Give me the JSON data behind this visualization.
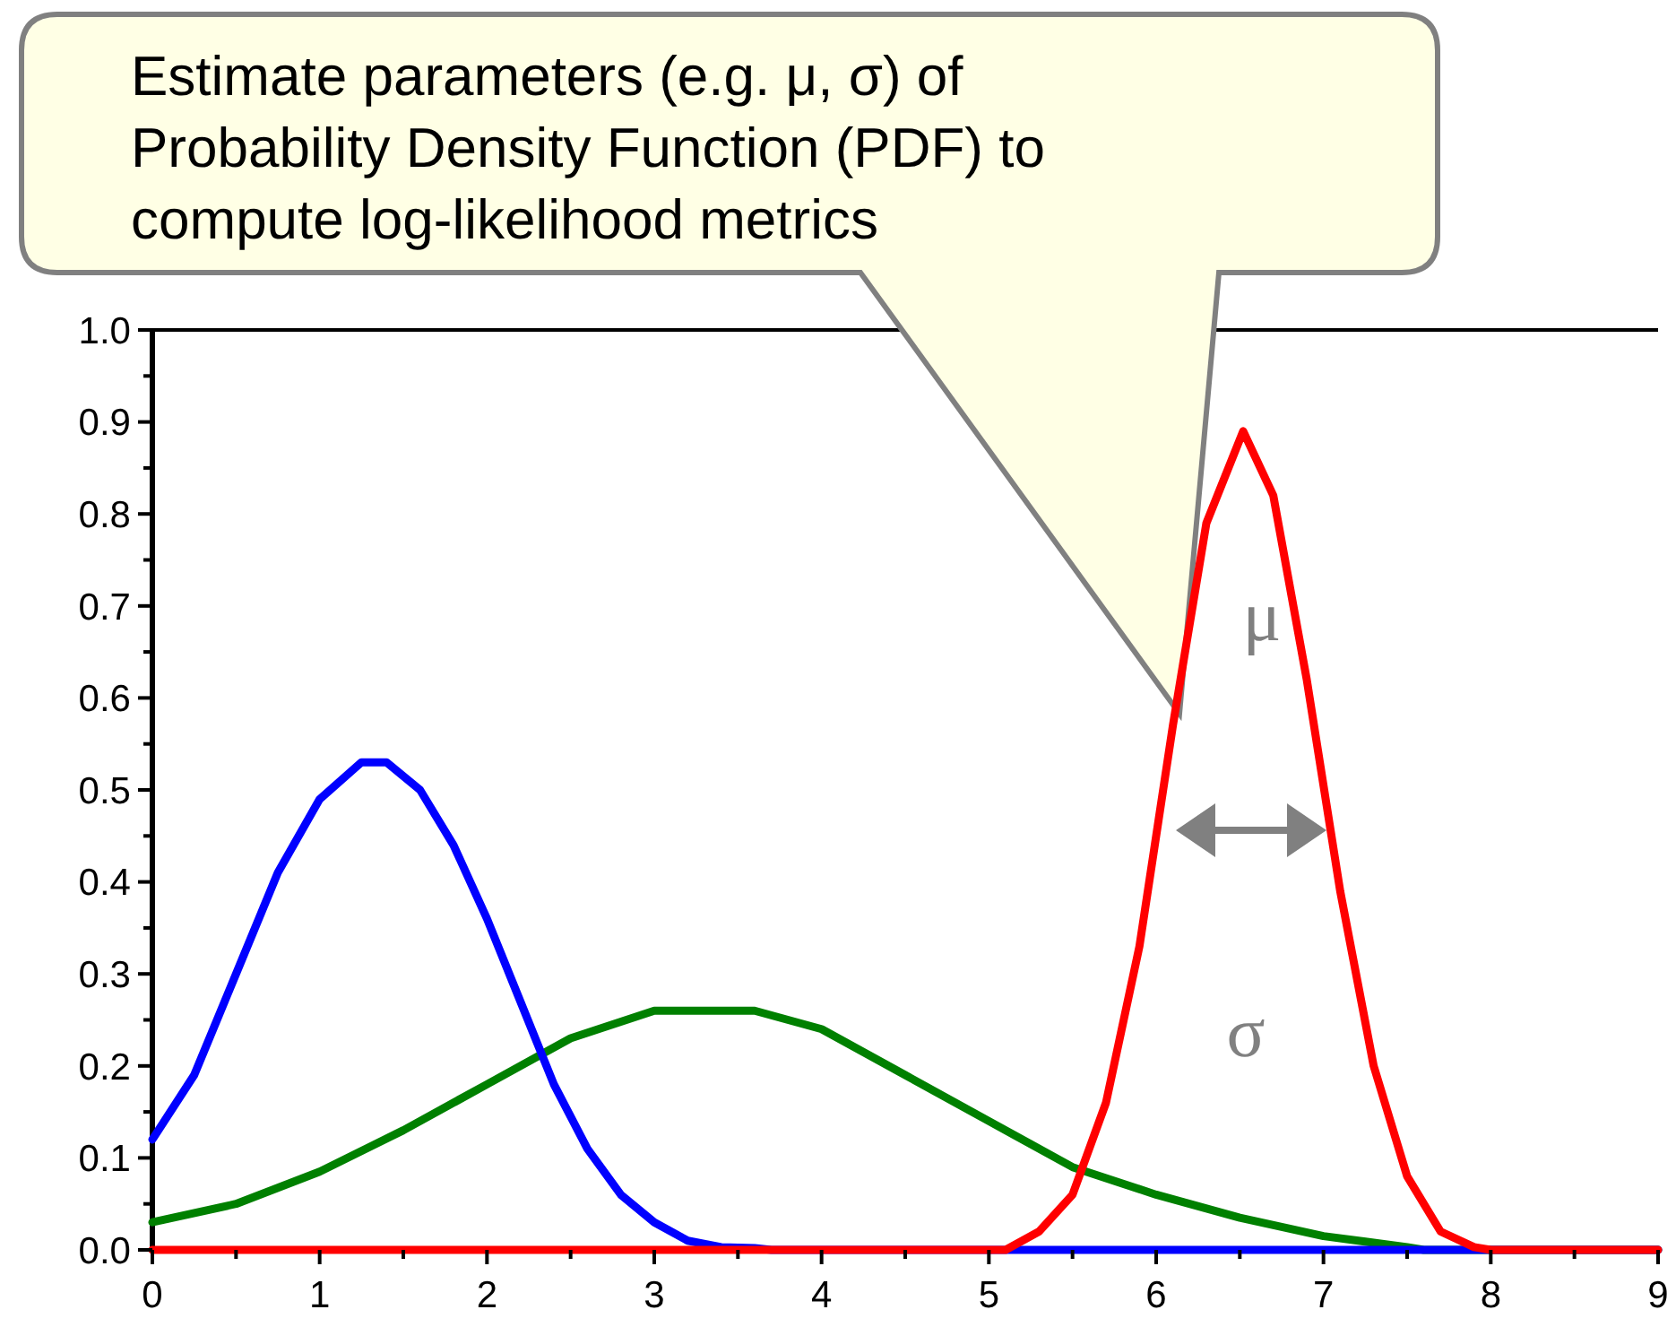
{
  "chart_data": {
    "type": "line",
    "xlim": [
      0,
      9
    ],
    "ylim": [
      0,
      1
    ],
    "xticks": [
      0,
      {
        "value": 0.5,
        "label": null
      },
      1,
      {
        "value": 1.5,
        "label": null
      },
      2,
      {
        "value": 2.5,
        "label": null
      },
      3,
      {
        "value": 3.5,
        "label": null
      },
      4,
      {
        "value": 4.5,
        "label": null
      },
      5,
      {
        "value": 5.5,
        "label": null
      },
      6,
      {
        "value": 6.5,
        "label": null
      },
      7,
      {
        "value": 7.5,
        "label": null
      },
      8,
      {
        "value": 8.5,
        "label": null
      },
      9
    ],
    "yticks": [
      {
        "value": 0,
        "label": "0.0"
      },
      {
        "value": 0.05,
        "label": null
      },
      0.1,
      {
        "value": 0.15,
        "label": null
      },
      0.2,
      {
        "value": 0.25,
        "label": null
      },
      0.3,
      {
        "value": 0.35,
        "label": null
      },
      0.4,
      {
        "value": 0.45,
        "label": null
      },
      0.5,
      {
        "value": 0.55,
        "label": null
      },
      0.6,
      {
        "value": 0.65,
        "label": null
      },
      0.7,
      {
        "value": 0.75,
        "label": null
      },
      0.8,
      {
        "value": 0.85,
        "label": null
      },
      0.9,
      {
        "value": 0.95,
        "label": null
      },
      {
        "value": 1,
        "label": "1.0"
      }
    ],
    "grid": false,
    "marker": "none",
    "line_style": "solid",
    "series": [
      {
        "color": "#008000",
        "x": [
          0,
          0.5,
          1,
          1.5,
          2,
          2.5,
          3,
          3.6,
          4,
          4.5,
          5,
          5.5,
          6,
          6.5,
          7,
          7.5,
          7.6,
          9
        ],
        "values": [
          0.03,
          0.05,
          0.085,
          0.13,
          0.18,
          0.23,
          0.26,
          0.26,
          0.24,
          0.19,
          0.14,
          0.09,
          0.06,
          0.035,
          0.015,
          0.003,
          0,
          0
        ]
      },
      {
        "color": "#0000ff",
        "x": [
          0,
          0.25,
          0.5,
          0.75,
          1,
          1.25,
          1.4,
          1.6,
          1.8,
          2,
          2.2,
          2.4,
          2.6,
          2.8,
          3,
          3.2,
          3.4,
          3.6,
          3.7,
          9
        ],
        "values": [
          0.12,
          0.19,
          0.3,
          0.41,
          0.49,
          0.53,
          0.53,
          0.5,
          0.44,
          0.36,
          0.27,
          0.18,
          0.11,
          0.06,
          0.03,
          0.01,
          0.003,
          0.002,
          0,
          0
        ]
      },
      {
        "color": "#ff0000",
        "x": [
          0,
          5.1,
          5.3,
          5.5,
          5.7,
          5.9,
          6.1,
          6.3,
          6.52,
          6.7,
          6.9,
          7.1,
          7.3,
          7.5,
          7.7,
          7.9,
          8,
          9
        ],
        "values": [
          0,
          0,
          0.02,
          0.06,
          0.16,
          0.33,
          0.57,
          0.79,
          0.89,
          0.82,
          0.62,
          0.39,
          0.2,
          0.08,
          0.02,
          0.003,
          0,
          0
        ]
      }
    ],
    "annotations": [
      "Estimate parameters (e.g. μ, σ) of Probability Density Function (PDF) to compute log-likelihood metrics",
      "μ",
      "σ"
    ]
  }
}
